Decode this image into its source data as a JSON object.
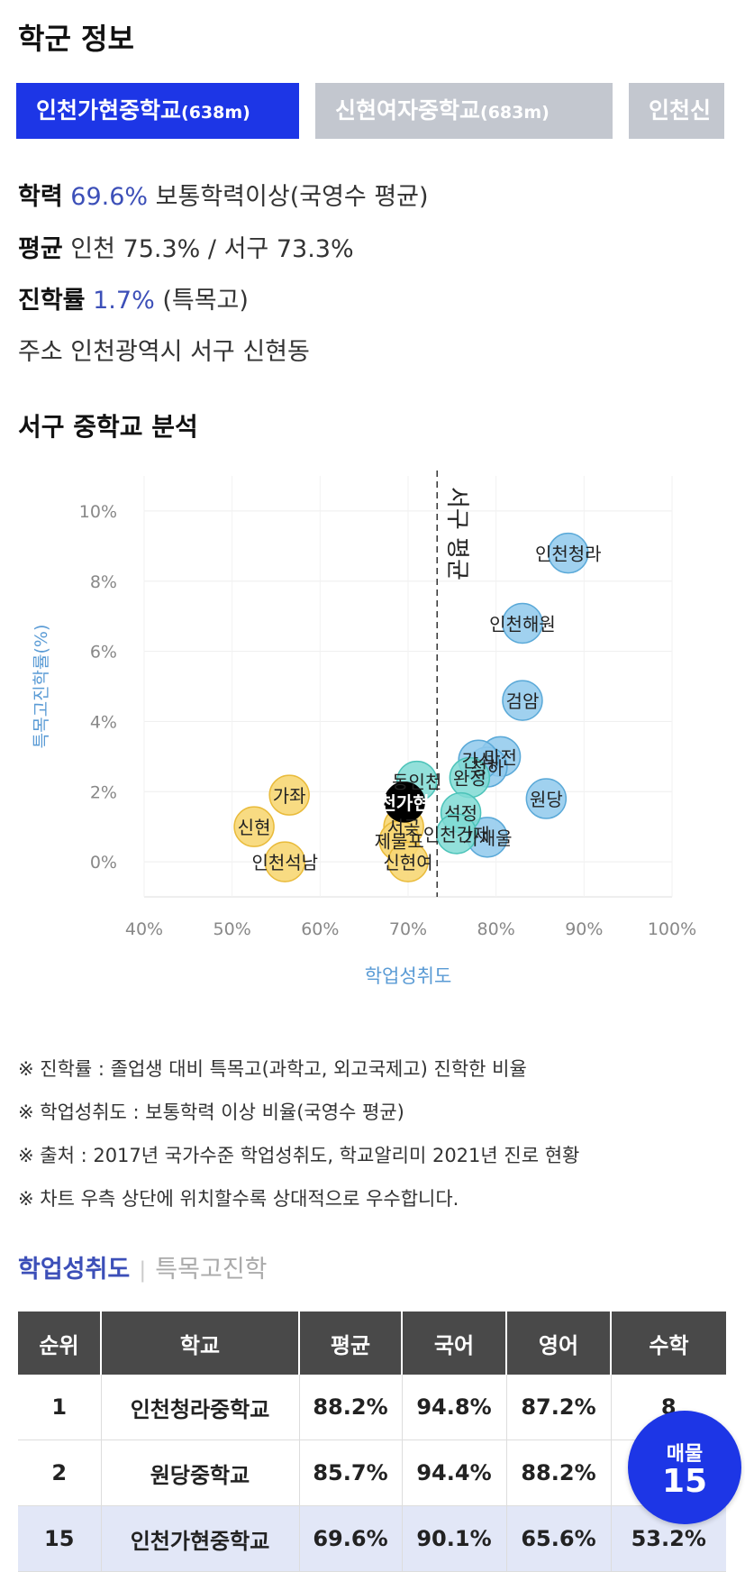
{
  "page": {
    "title": "학군 정보"
  },
  "tabs": [
    {
      "name": "인천가현중학교",
      "dist": "(638m)",
      "active": true
    },
    {
      "name": "신현여자중학교",
      "dist": "(683m)",
      "active": false
    },
    {
      "name": "인천신",
      "dist": "",
      "active": false
    }
  ],
  "info": {
    "achievement": {
      "label": "학력",
      "value": "69.6%",
      "suffix": "보통학력이상(국영수 평균)"
    },
    "average": {
      "label": "평균",
      "value": "인천 75.3% / 서구 73.3%"
    },
    "advancement": {
      "label": "진학률",
      "value": "1.7%",
      "suffix": "(특목고)"
    },
    "address": {
      "label": "주소",
      "value": "인천광역시 서구 신현동"
    }
  },
  "chart_title": "서구 중학교 분석",
  "chart_data": {
    "type": "scatter",
    "xlabel": "학업성취도",
    "ylabel": "특목고진학률(%)",
    "xlim": [
      40,
      100
    ],
    "ylim": [
      -1,
      11
    ],
    "xticks": [
      "40%",
      "50%",
      "60%",
      "70%",
      "80%",
      "90%",
      "100%"
    ],
    "yticks": [
      "0%",
      "2%",
      "4%",
      "6%",
      "8%",
      "10%"
    ],
    "reference_line": {
      "x": 73.3,
      "label": "서구 평균"
    },
    "colors": {
      "blue": "#8fc9ec",
      "teal": "#7fdbd3",
      "yellow": "#f7d774",
      "black": "#000000"
    },
    "points": [
      {
        "label": "인천청라",
        "x": 88.2,
        "y": 8.8,
        "color": "blue"
      },
      {
        "label": "인천해원",
        "x": 83.0,
        "y": 6.8,
        "color": "blue"
      },
      {
        "label": "검암",
        "x": 83.0,
        "y": 4.6,
        "color": "blue"
      },
      {
        "label": "원당",
        "x": 85.7,
        "y": 1.8,
        "color": "blue"
      },
      {
        "label": "마전",
        "x": 80.5,
        "y": 3.0,
        "color": "blue"
      },
      {
        "label": "청하",
        "x": 79.0,
        "y": 2.7,
        "color": "blue"
      },
      {
        "label": "간석",
        "x": 78.0,
        "y": 2.9,
        "color": "blue"
      },
      {
        "label": "가재울",
        "x": 79.0,
        "y": 0.7,
        "color": "blue"
      },
      {
        "label": "동인천",
        "x": 71.0,
        "y": 2.3,
        "color": "teal"
      },
      {
        "label": "완정",
        "x": 77.0,
        "y": 2.4,
        "color": "teal"
      },
      {
        "label": "석정",
        "x": 76.0,
        "y": 1.4,
        "color": "teal"
      },
      {
        "label": "인천간재",
        "x": 75.5,
        "y": 0.8,
        "color": "teal"
      },
      {
        "label": "가좌",
        "x": 56.5,
        "y": 1.9,
        "color": "yellow"
      },
      {
        "label": "신현",
        "x": 52.5,
        "y": 1.0,
        "color": "yellow"
      },
      {
        "label": "인천석남",
        "x": 56.0,
        "y": 0.0,
        "color": "yellow"
      },
      {
        "label": "서곶",
        "x": 69.5,
        "y": 1.0,
        "color": "yellow"
      },
      {
        "label": "제물포",
        "x": 69.0,
        "y": 0.6,
        "color": "yellow"
      },
      {
        "label": "신현여",
        "x": 70.0,
        "y": 0.0,
        "color": "yellow"
      },
      {
        "label": "천가현",
        "x": 69.6,
        "y": 1.7,
        "color": "black"
      }
    ]
  },
  "notes": [
    "※ 진학률 : 졸업생 대비 특목고(과학고, 외고국제고) 진학한 비율",
    "※ 학업성취도 : 보통학력 이상 비율(국영수 평균)",
    "※ 출처 : 2017년 국가수준 학업성취도, 학교알리미 2021년 진로 현황",
    "※ 차트 우측 상단에 위치할수록 상대적으로 우수합니다."
  ],
  "subtabs": {
    "active": "학업성취도",
    "inactive": "특목고진학"
  },
  "table": {
    "headers": [
      "순위",
      "학교",
      "평균",
      "국어",
      "영어",
      "수학"
    ],
    "rows": [
      [
        "1",
        "인천청라중학교",
        "88.2%",
        "94.8%",
        "87.2%",
        "8"
      ],
      [
        "2",
        "원당중학교",
        "85.7%",
        "94.4%",
        "88.2%",
        ""
      ],
      [
        "15",
        "인천가현중학교",
        "69.6%",
        "90.1%",
        "65.6%",
        "53.2%"
      ]
    ]
  },
  "fab": {
    "line1": "매물",
    "line2": "15"
  }
}
